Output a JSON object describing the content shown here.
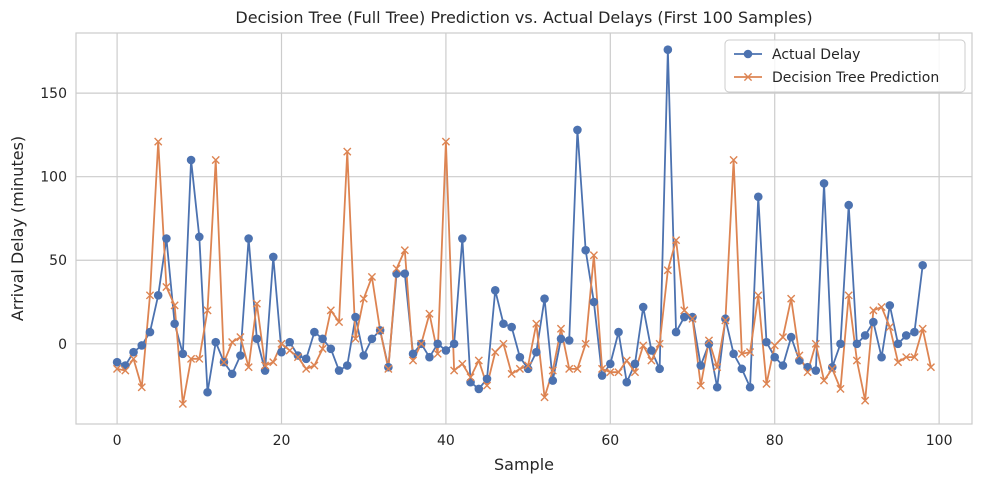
{
  "chart_data": {
    "type": "line",
    "title": "Decision Tree (Full Tree) Prediction vs. Actual Delays (First 100 Samples)",
    "xlabel": "Sample",
    "ylabel": "Arrival Delay (minutes)",
    "xlim": [
      -5,
      104
    ],
    "ylim": [
      -48,
      186
    ],
    "xticks": [
      0,
      20,
      40,
      60,
      80,
      100
    ],
    "yticks": [
      0,
      50,
      100,
      150
    ],
    "grid": true,
    "legend_position": "top-right",
    "series": [
      {
        "name": "Actual Delay",
        "color": "#4c72b0",
        "marker": "circle",
        "values": [
          -11,
          -13,
          -5,
          -1,
          7,
          29,
          63,
          12,
          -6,
          110,
          64,
          -29,
          1,
          -11,
          -18,
          -7,
          63,
          3,
          -16,
          52,
          -5,
          1,
          -7,
          -9,
          7,
          3,
          -3,
          -16,
          -13,
          16,
          -7,
          3,
          8,
          -14,
          42,
          42,
          -6,
          0,
          -8,
          0,
          -4,
          0,
          63,
          -23,
          -27,
          -21,
          32,
          12,
          10,
          -8,
          -15,
          -5,
          27,
          -22,
          3,
          2,
          128,
          56,
          25,
          -19,
          -12,
          7,
          -23,
          -12,
          22,
          -4,
          -15,
          176,
          7,
          16,
          16,
          -13,
          0,
          -26,
          15,
          -6,
          -15,
          -26,
          88,
          1,
          -8,
          -13,
          4,
          -10,
          -14,
          -16,
          96,
          -14,
          0,
          83,
          0,
          5,
          13,
          -8,
          23,
          0,
          5,
          7,
          47,
          null
        ]
      },
      {
        "name": "Decision Tree Prediction",
        "color": "#dd8452",
        "marker": "x",
        "values": [
          -15,
          -16,
          -9,
          -26,
          29,
          121,
          34,
          23,
          -36,
          -9,
          -9,
          20,
          110,
          -11,
          1,
          4,
          -14,
          24,
          -13,
          -11,
          0,
          -4,
          -8,
          -15,
          -13,
          -3,
          20,
          13,
          115,
          3,
          27,
          40,
          8,
          -15,
          45,
          56,
          -10,
          0,
          18,
          -6,
          121,
          -16,
          -12,
          -20,
          -10,
          -25,
          -5,
          0,
          -18,
          -15,
          -13,
          12,
          -32,
          -16,
          9,
          -15,
          -15,
          0,
          53,
          -15,
          -17,
          -17,
          -10,
          -17,
          -1,
          -10,
          0,
          44,
          62,
          20,
          15,
          -25,
          2,
          -14,
          14,
          110,
          -6,
          -5,
          29,
          -24,
          -1,
          4,
          27,
          -7,
          -17,
          0,
          -22,
          -15,
          -27,
          29,
          -10,
          -34,
          20,
          22,
          10,
          -11,
          -8,
          -8,
          9,
          -14
        ]
      }
    ]
  }
}
